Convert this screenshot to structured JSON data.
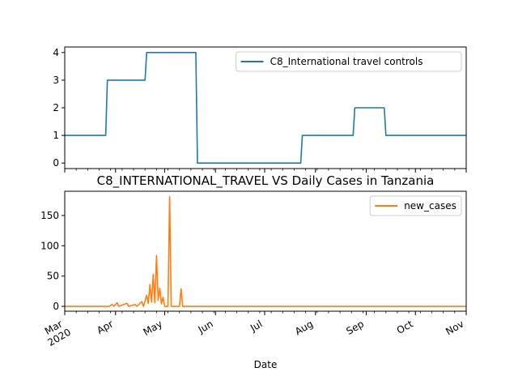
{
  "chart_data": [
    {
      "type": "line",
      "xlabel": "",
      "ylabel": "",
      "ylim": [
        -0.2,
        4.2
      ],
      "yticks": [
        0,
        1,
        2,
        3,
        4
      ],
      "grid": false,
      "legend_position": "upper-right",
      "series": [
        {
          "name": "C8_International travel controls",
          "color": "#1f77b4",
          "points": [
            [
              "2020-03-01",
              1
            ],
            [
              "2020-03-26",
              1
            ],
            [
              "2020-03-27",
              3
            ],
            [
              "2020-04-19",
              3
            ],
            [
              "2020-04-20",
              4
            ],
            [
              "2020-05-20",
              4
            ],
            [
              "2020-05-21",
              0
            ],
            [
              "2020-07-23",
              0
            ],
            [
              "2020-07-24",
              1
            ],
            [
              "2020-08-24",
              1
            ],
            [
              "2020-08-25",
              2
            ],
            [
              "2020-09-12",
              2
            ],
            [
              "2020-09-13",
              1
            ],
            [
              "2020-11-01",
              1
            ]
          ]
        }
      ]
    },
    {
      "type": "line",
      "title": "C8_INTERNATIONAL_TRAVEL VS Daily Cases in Tanzania",
      "xlabel": "Date",
      "ylabel": "",
      "ylim": [
        -8,
        190
      ],
      "yticks": [
        0,
        50,
        100,
        150
      ],
      "grid": false,
      "legend_position": "upper-right",
      "x_tick_labels": [
        {
          "date": "2020-03-01",
          "label": "Mar",
          "sub": "2020"
        },
        {
          "date": "2020-04-01",
          "label": "Apr"
        },
        {
          "date": "2020-05-01",
          "label": "May"
        },
        {
          "date": "2020-06-01",
          "label": "Jun"
        },
        {
          "date": "2020-07-01",
          "label": "Jul"
        },
        {
          "date": "2020-08-01",
          "label": "Aug"
        },
        {
          "date": "2020-09-01",
          "label": "Sep"
        },
        {
          "date": "2020-10-01",
          "label": "Oct"
        },
        {
          "date": "2020-11-01",
          "label": "Nov"
        }
      ],
      "xlim": [
        "2020-03-01",
        "2020-11-01"
      ],
      "series": [
        {
          "name": "new_cases",
          "color": "#ff7f0e",
          "points": [
            [
              "2020-03-01",
              0
            ],
            [
              "2020-03-28",
              0
            ],
            [
              "2020-03-30",
              3
            ],
            [
              "2020-03-31",
              0
            ],
            [
              "2020-04-02",
              6
            ],
            [
              "2020-04-03",
              0
            ],
            [
              "2020-04-08",
              5
            ],
            [
              "2020-04-09",
              0
            ],
            [
              "2020-04-13",
              3
            ],
            [
              "2020-04-14",
              0
            ],
            [
              "2020-04-17",
              8
            ],
            [
              "2020-04-18",
              0
            ],
            [
              "2020-04-20",
              18
            ],
            [
              "2020-04-21",
              5
            ],
            [
              "2020-04-22",
              36
            ],
            [
              "2020-04-23",
              7
            ],
            [
              "2020-04-24",
              53
            ],
            [
              "2020-04-25",
              6
            ],
            [
              "2020-04-26",
              84
            ],
            [
              "2020-04-27",
              10
            ],
            [
              "2020-04-28",
              30
            ],
            [
              "2020-04-29",
              4
            ],
            [
              "2020-04-30",
              15
            ],
            [
              "2020-05-01",
              0
            ],
            [
              "2020-05-03",
              0
            ],
            [
              "2020-05-04",
              181
            ],
            [
              "2020-05-05",
              0
            ],
            [
              "2020-05-10",
              0
            ],
            [
              "2020-05-11",
              29
            ],
            [
              "2020-05-12",
              0
            ],
            [
              "2020-11-01",
              0
            ]
          ]
        }
      ]
    }
  ]
}
